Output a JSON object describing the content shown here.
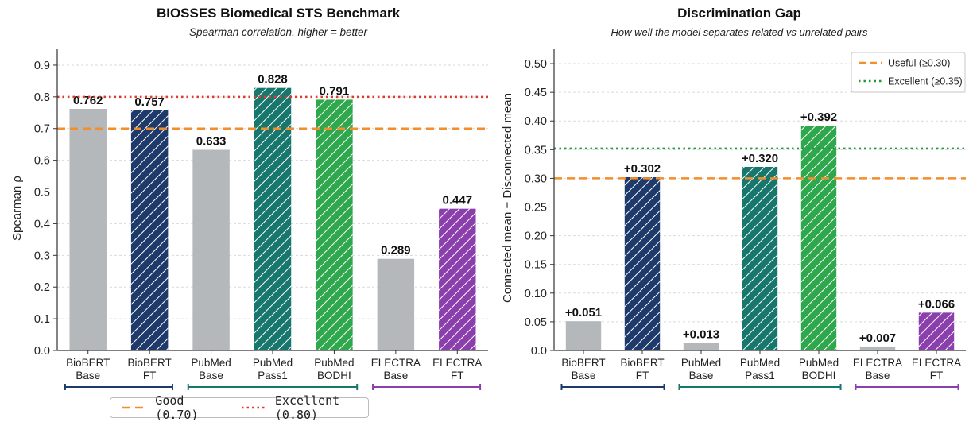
{
  "chart_data": [
    {
      "type": "bar",
      "title": "BIOSSES Biomedical STS Benchmark",
      "subtitle": "Spearman correlation, higher = better",
      "xlabel": "",
      "ylabel": "Spearman ρ",
      "ylim": [
        0,
        0.95
      ],
      "yticks": [
        "0.0",
        "0.1",
        "0.2",
        "0.3",
        "0.4",
        "0.5",
        "0.6",
        "0.7",
        "0.8",
        "0.9"
      ],
      "grid": true,
      "categories": [
        "BioBERT Base",
        "BioBERT FT",
        "PubMed Base",
        "PubMed Pass1",
        "PubMed BODHI",
        "ELECTRA Base",
        "ELECTRA FT"
      ],
      "category_lines": [
        [
          "BioBERT",
          "Base"
        ],
        [
          "BioBERT",
          "FT"
        ],
        [
          "PubMed",
          "Base"
        ],
        [
          "PubMed",
          "Pass1"
        ],
        [
          "PubMed",
          "BODHI"
        ],
        [
          "ELECTRA",
          "Base"
        ],
        [
          "ELECTRA",
          "FT"
        ]
      ],
      "values": [
        0.762,
        0.757,
        0.633,
        0.828,
        0.791,
        0.289,
        0.447
      ],
      "value_labels": [
        "0.762",
        "0.757",
        "0.633",
        "0.828",
        "0.791",
        "0.289",
        "0.447"
      ],
      "bar_colors": [
        "#b4b8bb",
        "#1d3a6b",
        "#b4b8bb",
        "#18776d",
        "#2ea74d",
        "#b4b8bb",
        "#8a3fac"
      ],
      "hatched": [
        false,
        true,
        false,
        true,
        true,
        false,
        true
      ],
      "reference_lines": [
        {
          "label": "Good (0.70)",
          "value": 0.7,
          "color": "#f28e2b",
          "style": "dashed"
        },
        {
          "label": "Excellent (0.80)",
          "value": 0.8,
          "color": "#e03a2f",
          "style": "dotted"
        }
      ],
      "legend_position": "bottom-center",
      "group_brackets": [
        {
          "categories": [
            "BioBERT Base",
            "BioBERT FT"
          ],
          "color": "#1d3a6b"
        },
        {
          "categories": [
            "PubMed Base",
            "PubMed Pass1",
            "PubMed BODHI"
          ],
          "color": "#18776d"
        },
        {
          "categories": [
            "ELECTRA Base",
            "ELECTRA FT"
          ],
          "color": "#8a3fac"
        }
      ]
    },
    {
      "type": "bar",
      "title": "Discrimination Gap",
      "subtitle": "How well the model separates related vs unrelated pairs",
      "xlabel": "",
      "ylabel": "Connected mean − Disconnected mean",
      "ylim": [
        0,
        0.525
      ],
      "yticks": [
        "0.0",
        "0.05",
        "0.10",
        "0.15",
        "0.20",
        "0.25",
        "0.30",
        "0.35",
        "0.40",
        "0.45",
        "0.50"
      ],
      "grid": true,
      "categories": [
        "BioBERT Base",
        "BioBERT FT",
        "PubMed Base",
        "PubMed Pass1",
        "PubMed BODHI",
        "ELECTRA Base",
        "ELECTRA FT"
      ],
      "category_lines": [
        [
          "BioBERT",
          "Base"
        ],
        [
          "BioBERT",
          "FT"
        ],
        [
          "PubMed",
          "Base"
        ],
        [
          "PubMed",
          "Pass1"
        ],
        [
          "PubMed",
          "BODHI"
        ],
        [
          "ELECTRA",
          "Base"
        ],
        [
          "ELECTRA",
          "FT"
        ]
      ],
      "values": [
        0.051,
        0.302,
        0.013,
        0.32,
        0.392,
        0.007,
        0.066
      ],
      "value_labels": [
        "+0.051",
        "+0.302",
        "+0.013",
        "+0.320",
        "+0.392",
        "+0.007",
        "+0.066"
      ],
      "bar_colors": [
        "#b4b8bb",
        "#1d3a6b",
        "#b4b8bb",
        "#18776d",
        "#2ea74d",
        "#b4b8bb",
        "#8a3fac"
      ],
      "hatched": [
        false,
        true,
        false,
        true,
        true,
        false,
        true
      ],
      "reference_lines": [
        {
          "label": "Useful (≥0.30)",
          "value": 0.3,
          "color": "#f28e2b",
          "style": "dashed"
        },
        {
          "label": "Excellent (≥0.35)",
          "value": 0.352,
          "color": "#1f9a3a",
          "style": "dotted"
        }
      ],
      "legend_position": "top-right",
      "group_brackets": [
        {
          "categories": [
            "BioBERT Base",
            "BioBERT FT"
          ],
          "color": "#1d3a6b"
        },
        {
          "categories": [
            "PubMed Base",
            "PubMed Pass1",
            "PubMed BODHI"
          ],
          "color": "#18776d"
        },
        {
          "categories": [
            "ELECTRA Base",
            "ELECTRA FT"
          ],
          "color": "#8a3fac"
        }
      ]
    }
  ]
}
